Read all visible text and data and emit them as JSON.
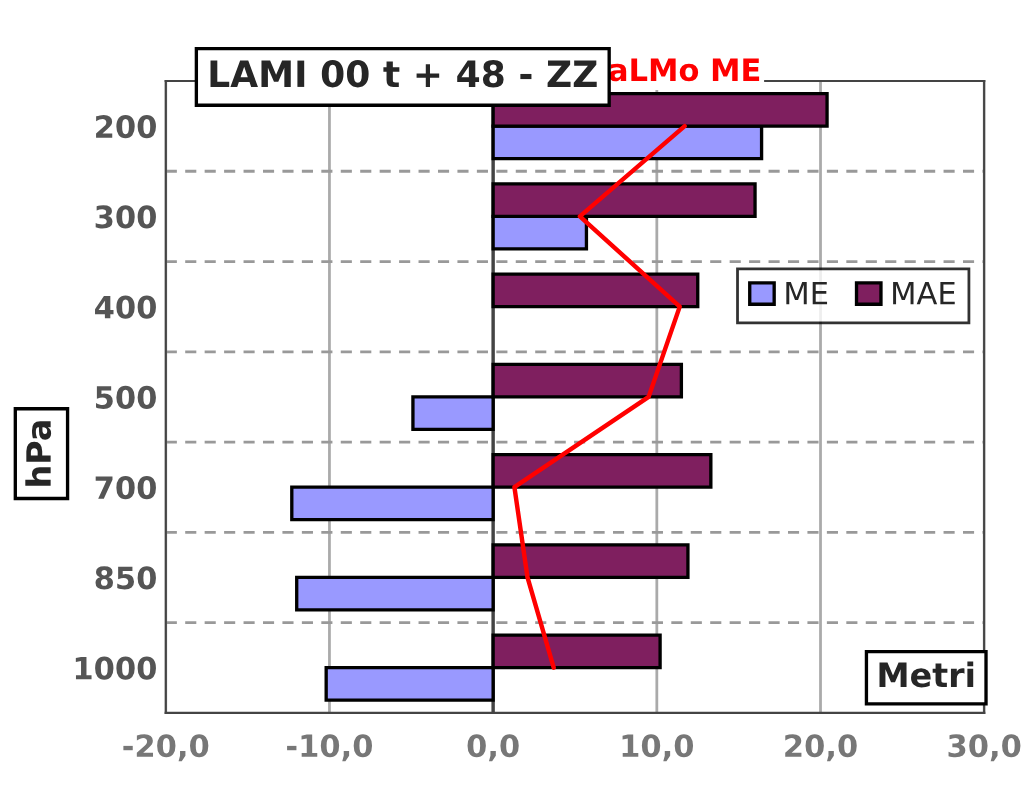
{
  "chart_data": {
    "type": "bar",
    "orientation": "horizontal",
    "title": "LAMI 00 t + 48 - ZZ",
    "xlabel": "Metri",
    "ylabel": "hPa",
    "categories": [
      "200",
      "300",
      "400",
      "500",
      "700",
      "850",
      "1000"
    ],
    "series": [
      {
        "name": "ME",
        "color": "#9999ff",
        "values": [
          16.4,
          5.7,
          null,
          -4.9,
          -12.3,
          -12.0,
          -10.2
        ]
      },
      {
        "name": "MAE",
        "color": "#7f1f5f",
        "values": [
          20.4,
          16.0,
          12.5,
          11.5,
          13.3,
          11.9,
          10.2
        ]
      },
      {
        "name": "aLMo ME",
        "type": "line",
        "color": "#ff0000",
        "values": [
          11.7,
          5.3,
          11.4,
          9.5,
          1.3,
          2.1,
          3.7
        ]
      }
    ],
    "xlim": [
      -20,
      30
    ],
    "xticks": [
      {
        "value": -20,
        "label": "-20,0"
      },
      {
        "value": -10,
        "label": "-10,0"
      },
      {
        "value": 0,
        "label": "0,0"
      },
      {
        "value": 10,
        "label": "10,0"
      },
      {
        "value": 20,
        "label": "20,0"
      },
      {
        "value": 30,
        "label": "30,0"
      }
    ],
    "grid": true,
    "legend": "right"
  }
}
